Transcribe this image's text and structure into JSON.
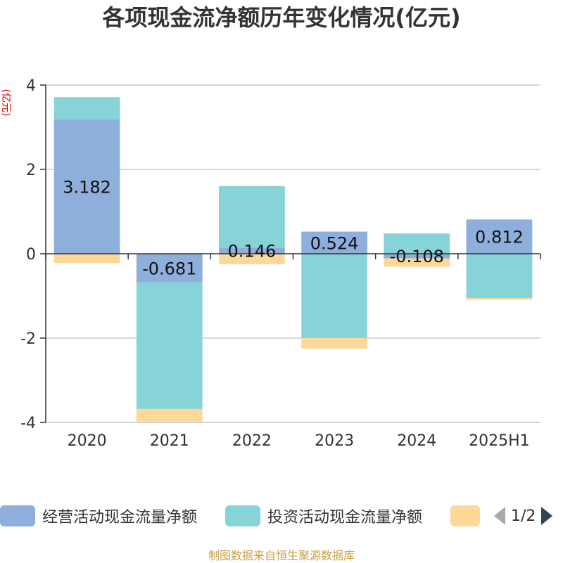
{
  "chart_data": {
    "type": "bar",
    "stacked": true,
    "title": "各项现金流净额历年变化情况(亿元)",
    "ylabel": "(亿元)",
    "categories": [
      "2020",
      "2021",
      "2022",
      "2023",
      "2024",
      "2025H1"
    ],
    "ylim": [
      -4,
      4
    ],
    "yticks": [
      4,
      2,
      0,
      -2,
      -4
    ],
    "grid": true,
    "legend_position": "bottom",
    "series": [
      {
        "name": "经营活动现金流量净额",
        "color": "#8eaedb",
        "values": [
          3.182,
          -0.681,
          0.146,
          0.524,
          -0.108,
          0.812
        ],
        "labels": [
          "3.182",
          "-0.681",
          "0.146",
          "0.524",
          "-0.108",
          "0.812"
        ]
      },
      {
        "name": "投资活动现金流量净额",
        "color": "#86d4d7",
        "values": [
          0.53,
          -3.0,
          1.46,
          -2.0,
          0.48,
          -1.05
        ]
      },
      {
        "name": "",
        "color": "#fdd898",
        "values": [
          -0.22,
          -0.3,
          -0.25,
          -0.25,
          -0.2,
          -0.04
        ]
      }
    ]
  },
  "legend": {
    "item1": "经营活动现金流量净额",
    "item2": "投资活动现金流量净额",
    "page": "1/2"
  },
  "source": "制图数据来自恒生聚源数据库"
}
